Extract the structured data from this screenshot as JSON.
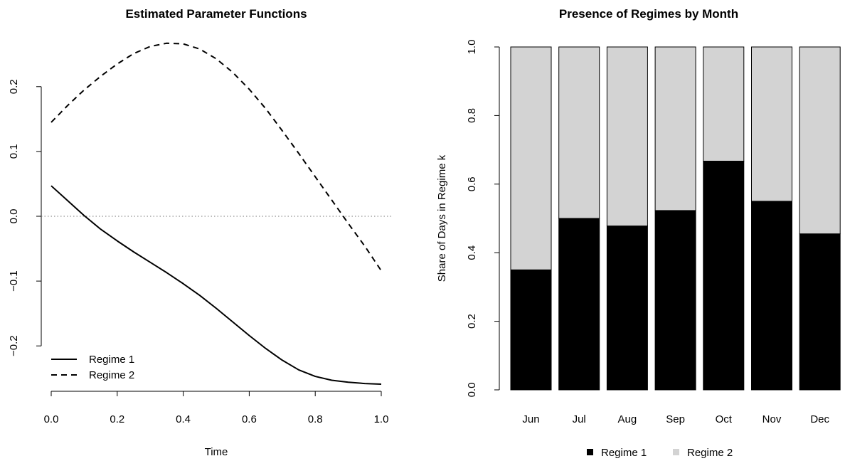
{
  "chart_data": [
    {
      "type": "line",
      "title": "Estimated Parameter Functions",
      "xlabel": "Time",
      "ylabel": "",
      "xlim": [
        0.0,
        1.0
      ],
      "ylim": [
        -0.27,
        0.27
      ],
      "xticks": [
        0.0,
        0.2,
        0.4,
        0.6,
        0.8,
        1.0
      ],
      "xtick_labels": [
        "0.0",
        "0.2",
        "0.4",
        "0.6",
        "0.8",
        "1.0"
      ],
      "yticks": [
        -0.2,
        -0.1,
        0.0,
        0.1,
        0.2
      ],
      "ytick_labels": [
        "−0.2",
        "−0.1",
        "0.0",
        "0.1",
        "0.2"
      ],
      "reference_line": {
        "y": 0.0,
        "style": "dotted",
        "color": "#777777"
      },
      "legend_position": "bottom-left",
      "grid": false,
      "x": [
        0.0,
        0.05,
        0.1,
        0.15,
        0.2,
        0.25,
        0.3,
        0.35,
        0.4,
        0.45,
        0.5,
        0.55,
        0.6,
        0.65,
        0.7,
        0.75,
        0.8,
        0.85,
        0.9,
        0.95,
        1.0
      ],
      "series": [
        {
          "name": "Regime 1",
          "style": "solid",
          "values": [
            0.047,
            0.024,
            0.001,
            -0.02,
            -0.038,
            -0.055,
            -0.071,
            -0.087,
            -0.104,
            -0.122,
            -0.142,
            -0.163,
            -0.184,
            -0.204,
            -0.222,
            -0.237,
            -0.247,
            -0.253,
            -0.256,
            -0.258,
            -0.259
          ]
        },
        {
          "name": "Regime 2",
          "style": "dashed",
          "values": [
            0.145,
            0.171,
            0.195,
            0.216,
            0.235,
            0.251,
            0.262,
            0.267,
            0.266,
            0.258,
            0.243,
            0.222,
            0.196,
            0.166,
            0.132,
            0.097,
            0.061,
            0.025,
            -0.011,
            -0.046,
            -0.084
          ]
        }
      ]
    },
    {
      "type": "bar",
      "stacked": true,
      "title": "Presence of Regimes by Month",
      "xlabel": "",
      "ylabel": "Share of Days in Regime k",
      "ylim": [
        0.0,
        1.0
      ],
      "yticks": [
        0.0,
        0.2,
        0.4,
        0.6,
        0.8,
        1.0
      ],
      "ytick_labels": [
        "0.0",
        "0.2",
        "0.4",
        "0.6",
        "0.8",
        "1.0"
      ],
      "categories": [
        "Jun",
        "Jul",
        "Aug",
        "Sep",
        "Oct",
        "Nov",
        "Dec"
      ],
      "legend_position": "bottom-center",
      "grid": false,
      "series": [
        {
          "name": "Regime 1",
          "color": "#000000",
          "values": [
            0.35,
            0.5,
            0.478,
            0.523,
            0.667,
            0.55,
            0.455
          ]
        },
        {
          "name": "Regime 2",
          "color": "#d3d3d3",
          "values": [
            0.65,
            0.5,
            0.522,
            0.477,
            0.333,
            0.45,
            0.545
          ]
        }
      ]
    }
  ]
}
